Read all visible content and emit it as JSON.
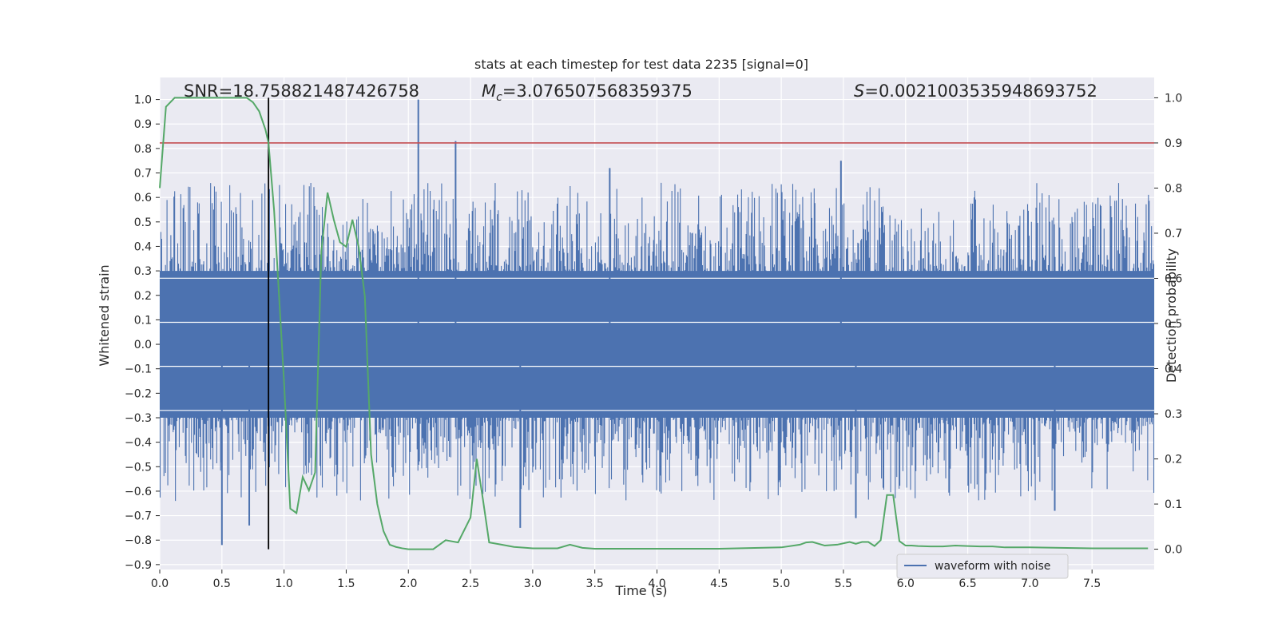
{
  "chart_data": {
    "type": "line",
    "title": "stats at each timestep for test data 2235 [signal=0]",
    "xlabel": "Time (s)",
    "ylabel_left": "Whitened strain",
    "ylabel_right": "Detection probability",
    "xlim": [
      0,
      8
    ],
    "ylim_left": [
      -0.92,
      1.09
    ],
    "ylim_right": [
      -0.045,
      1.045
    ],
    "x_ticks": [
      "0.0",
      "0.5",
      "1.0",
      "1.5",
      "2.0",
      "2.5",
      "3.0",
      "3.5",
      "4.0",
      "4.5",
      "5.0",
      "5.5",
      "6.0",
      "6.5",
      "7.0",
      "7.5"
    ],
    "y_left_ticks": [
      "−0.9",
      "−0.8",
      "−0.7",
      "−0.6",
      "−0.5",
      "−0.4",
      "−0.3",
      "−0.2",
      "−0.1",
      "0.0",
      "0.1",
      "0.2",
      "0.3",
      "0.4",
      "0.5",
      "0.6",
      "0.7",
      "0.8",
      "0.9",
      "1.0"
    ],
    "y_right_ticks": [
      "0.0",
      "0.1",
      "0.2",
      "0.3",
      "0.4",
      "0.5",
      "0.6",
      "0.7",
      "0.8",
      "0.9",
      "1.0"
    ],
    "grid": true,
    "legend": {
      "placement": "lower-center-right",
      "entries": [
        "waveform with noise"
      ]
    },
    "stats": {
      "snr_label": "SNR=18.758821487426758",
      "mc_symbol": "M",
      "mc_sub": "c",
      "mc_value": "=3.076507568359375",
      "s_symbol": "S",
      "s_value": "=0.0021003535948693752"
    },
    "colors": {
      "waveform": "#4c72b0",
      "probability": "#55a868",
      "threshold": "#c44e52",
      "marker": "#000000",
      "background": "#eaeaf2"
    },
    "threshold": 0.9,
    "marker_time": 0.875,
    "waveform_envelope_upper": 0.27,
    "waveform_envelope_lower": -0.27,
    "waveform_spikes": [
      {
        "t": 0.5,
        "v": -0.82
      },
      {
        "t": 0.72,
        "v": -0.74
      },
      {
        "t": 2.08,
        "v": 1.0
      },
      {
        "t": 2.38,
        "v": 0.83
      },
      {
        "t": 2.9,
        "v": -0.75
      },
      {
        "t": 3.62,
        "v": 0.72
      },
      {
        "t": 5.48,
        "v": 0.75
      },
      {
        "t": 5.6,
        "v": -0.71
      },
      {
        "t": 7.2,
        "v": -0.68
      }
    ],
    "probability_series": {
      "x": [
        0.0,
        0.05,
        0.12,
        0.2,
        0.3,
        0.4,
        0.5,
        0.6,
        0.65,
        0.7,
        0.75,
        0.8,
        0.85,
        0.875,
        0.92,
        1.0,
        1.05,
        1.1,
        1.15,
        1.2,
        1.25,
        1.3,
        1.35,
        1.4,
        1.45,
        1.5,
        1.55,
        1.6,
        1.65,
        1.7,
        1.75,
        1.8,
        1.85,
        1.9,
        1.95,
        2.0,
        2.1,
        2.2,
        2.3,
        2.4,
        2.5,
        2.55,
        2.6,
        2.65,
        2.75,
        2.85,
        2.95,
        3.0,
        3.1,
        3.2,
        3.3,
        3.4,
        3.5,
        3.7,
        4.0,
        4.5,
        5.0,
        5.15,
        5.2,
        5.25,
        5.35,
        5.45,
        5.55,
        5.6,
        5.65,
        5.7,
        5.75,
        5.8,
        5.85,
        5.9,
        5.95,
        6.0,
        6.05,
        6.1,
        6.2,
        6.3,
        6.4,
        6.5,
        6.6,
        6.7,
        6.8,
        7.0,
        7.5,
        7.8,
        7.95
      ],
      "y": [
        0.8,
        0.98,
        1.0,
        1.0,
        1.0,
        1.0,
        1.0,
        1.0,
        1.0,
        1.0,
        0.99,
        0.97,
        0.93,
        0.9,
        0.75,
        0.37,
        0.09,
        0.08,
        0.16,
        0.13,
        0.17,
        0.66,
        0.79,
        0.73,
        0.68,
        0.67,
        0.73,
        0.67,
        0.56,
        0.21,
        0.1,
        0.04,
        0.01,
        0.005,
        0.002,
        0.0,
        0.0,
        0.0,
        0.02,
        0.015,
        0.07,
        0.2,
        0.11,
        0.015,
        0.01,
        0.005,
        0.003,
        0.002,
        0.002,
        0.002,
        0.01,
        0.003,
        0.001,
        0.001,
        0.001,
        0.001,
        0.004,
        0.01,
        0.015,
        0.016,
        0.008,
        0.01,
        0.016,
        0.012,
        0.016,
        0.016,
        0.007,
        0.02,
        0.12,
        0.12,
        0.018,
        0.008,
        0.008,
        0.007,
        0.006,
        0.006,
        0.008,
        0.007,
        0.006,
        0.006,
        0.004,
        0.004,
        0.002,
        0.002,
        0.002
      ]
    }
  }
}
